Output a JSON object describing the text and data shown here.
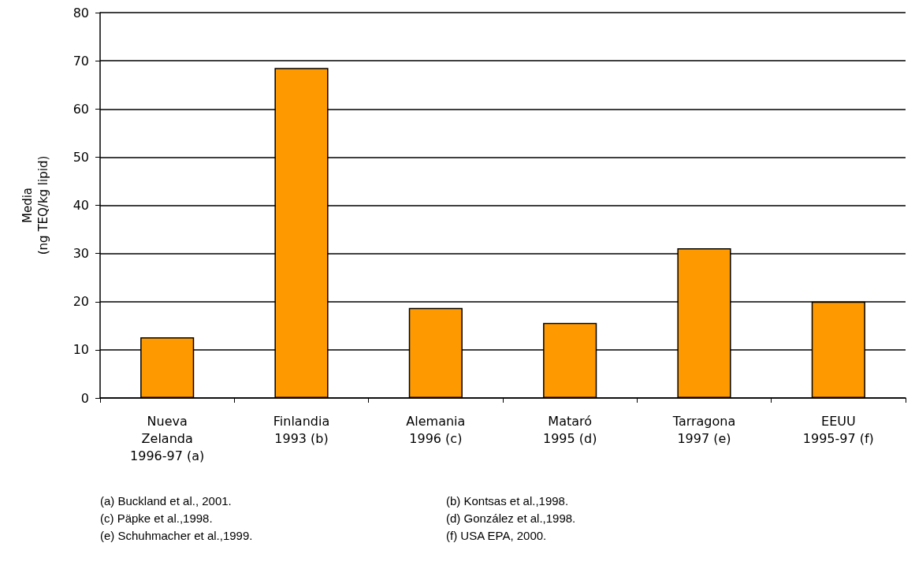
{
  "chart_data": {
    "type": "bar",
    "ylabel": "Media\n(ng TEQ/kg lipid)",
    "categories": [
      "Nueva\nZelanda\n1996-97 (a)",
      "Finlandia\n1993 (b)",
      "Alemania\n1996 (c)",
      "Mataró\n1995 (d)",
      "Tarragona\n1997 (e)",
      "EEUU\n1995-97 (f)"
    ],
    "values": [
      12.6,
      68.5,
      18.7,
      15.6,
      31.1,
      20.0
    ],
    "color": "#ff9900",
    "ylim": [
      0,
      80
    ],
    "yticks": [
      0,
      10,
      20,
      30,
      40,
      50,
      60,
      70,
      80
    ],
    "grid": "y",
    "annotations": [
      "(a) Buckland et al., 2001.",
      "(b) Kontsas et al.,1998.",
      "(c) Päpke et al.,1998.",
      "(d) González et al.,1998.",
      "(e) Schuhmacher et al.,1999.",
      "(f) USA EPA, 2000."
    ]
  }
}
